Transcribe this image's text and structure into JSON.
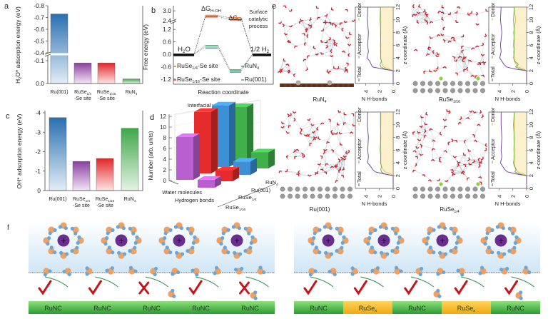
{
  "panel_letters": {
    "a": "a",
    "b": "b",
    "c": "c",
    "d": "d",
    "e": "e",
    "f": "f"
  },
  "chart_data": [
    {
      "id": "a",
      "type": "bar",
      "ylabel": [
        {
          "t": "H"
        },
        {
          "s": "2"
        },
        {
          "t": "O* adsorption energy (eV)"
        }
      ],
      "categories": [
        [
          {
            "t": "Ru(001)"
          }
        ],
        [
          {
            "t": "RuSe"
          },
          {
            "s": "1/4"
          }
        ],
        [
          {
            "t": "RuSe"
          },
          {
            "s": "1/16"
          }
        ],
        [
          {
            "t": "RuN"
          },
          {
            "s": "4"
          }
        ]
      ],
      "category_sublabels": [
        "",
        "-Se site",
        "-Se site",
        ""
      ],
      "values": [
        -0.73,
        -0.09,
        -0.09,
        -0.02
      ],
      "yticks": [
        -0.8,
        -0.7,
        -0.6,
        -0.5,
        -0.4,
        -0.1,
        0.0
      ],
      "ytick_labels": [
        "-0.8",
        "-0.7",
        "-0.6",
        "-0.5",
        "-0.4",
        "-0.1",
        "0.0"
      ],
      "axis_break": [
        -0.4,
        -0.12
      ],
      "ylim": [
        0,
        -0.8
      ],
      "colors": [
        "#2a6fb0",
        "#8b3f9e",
        "#e3262b",
        "#3fa64a"
      ]
    },
    {
      "id": "b",
      "type": "line",
      "ylabel": "Free energy (eV)",
      "xlabel": "Reaction coordinate",
      "yticks": [
        3.0,
        2.4,
        1.2,
        0.6,
        0.0,
        -0.6,
        -1.2
      ],
      "ytick_labels": [
        "3.0",
        "2.4",
        "1.2",
        "0.6",
        "0.0",
        "-0.6",
        "-1.2"
      ],
      "axis_break": [
        1.2,
        2.4
      ],
      "states": [
        [
          {
            "t": "H"
          },
          {
            "s": "2"
          },
          {
            "t": "O"
          }
        ],
        [
          {
            "t": "ΔG"
          },
          {
            "s": "H-OH"
          }
        ],
        [
          {
            "t": "ΔG"
          },
          {
            "s": "H*"
          }
        ],
        [
          {
            "t": "1/2 H"
          },
          {
            "s": "2"
          }
        ]
      ],
      "annotation": [
        "Surface",
        "catalytic",
        "process"
      ],
      "series": [
        {
          "name": [
            {
              "t": "RuSe"
            },
            {
              "s": "1/4"
            },
            {
              "t": "-Se site"
            }
          ],
          "values": [
            0,
            2.72,
            2.58,
            0
          ],
          "color": "#ee8a3c"
        },
        {
          "name": [
            {
              "t": "RuSe"
            },
            {
              "s": "1/16"
            },
            {
              "t": "-Se site"
            }
          ],
          "values": [
            0,
            2.66,
            2.48,
            0
          ],
          "color": "#d8402f"
        },
        {
          "name": [
            {
              "t": "RuN"
            },
            {
              "s": "4"
            }
          ],
          "values": [
            0,
            0.45,
            -0.72,
            0
          ],
          "color": "#46a866"
        },
        {
          "name": [
            {
              "t": "Ru(001)"
            }
          ],
          "values": [
            0,
            0.36,
            -0.8,
            0
          ],
          "color": "#5b9ea8"
        }
      ]
    },
    {
      "id": "c",
      "type": "bar",
      "ylabel": [
        {
          "t": "OH* adsorption energy (eV)"
        }
      ],
      "categories": [
        [
          {
            "t": "Ru(001)"
          }
        ],
        [
          {
            "t": "RuSe"
          },
          {
            "s": "1/4"
          }
        ],
        [
          {
            "t": "RuSe"
          },
          {
            "s": "1/16"
          }
        ],
        [
          {
            "t": "RuN"
          },
          {
            "s": "4"
          }
        ]
      ],
      "category_sublabels": [
        "",
        "-Se site",
        "-Se site",
        ""
      ],
      "values": [
        -3.75,
        -1.5,
        -1.65,
        -3.2
      ],
      "yticks": [
        -4,
        -3,
        -2,
        -1,
        0
      ],
      "ytick_labels": [
        "-4",
        "-3",
        "-2",
        "-1",
        "0"
      ],
      "ylim": [
        0,
        -4
      ],
      "colors": [
        "#2a6fb0",
        "#8b3f9e",
        "#e3262b",
        "#3fa64a"
      ]
    },
    {
      "id": "d",
      "type": "bar",
      "title": "Interfacial water structure",
      "ylabel": "Number (arb. units)",
      "categories": [
        "Water molecules",
        "Hydrogen bonds"
      ],
      "yticks": [
        0,
        2,
        4,
        6,
        8,
        10,
        12
      ],
      "ytick_labels": [
        "0",
        "2",
        "4",
        "6",
        "8",
        "10",
        "12"
      ],
      "ylim": [
        0,
        12
      ],
      "series": [
        {
          "name": [
            {
              "t": "RuSe"
            },
            {
              "s": "1/16"
            }
          ],
          "values": [
            8.0,
            1.5
          ],
          "color": "#b95fd0"
        },
        {
          "name": [
            {
              "t": "RuSe"
            },
            {
              "s": "1/4"
            }
          ],
          "values": [
            11.5,
            2.0
          ],
          "color": "#e52b2b"
        },
        {
          "name": [
            {
              "t": "Ru(001)"
            }
          ],
          "values": [
            11.5,
            2.5
          ],
          "color": "#3d8fd6"
        },
        {
          "name": [
            {
              "t": "RuN"
            },
            {
              "s": "4"
            }
          ],
          "values": [
            10.0,
            3.0
          ],
          "color": "#3fb04a"
        }
      ]
    },
    {
      "id": "e",
      "type": "line",
      "xlabel": "N H-bonds",
      "ylabel": "z-coordinate (Å)",
      "xticks": [
        "4",
        "2",
        "0"
      ],
      "yticks": [
        "0",
        "2",
        "4",
        "6",
        "8",
        "10",
        "12"
      ],
      "xlim": [
        5.5,
        0
      ],
      "ylim": [
        0,
        12
      ],
      "legend": [
        "Total",
        "Acceptor",
        "Donor"
      ],
      "z": [
        0,
        2.0,
        2.3,
        2.6,
        3.0,
        3.5,
        4.0,
        5.0,
        6.0,
        8.0,
        10.0,
        12.0
      ],
      "panels": [
        {
          "material": [
            {
              "t": "RuN"
            },
            {
              "s": "4"
            }
          ],
          "total": [
            0,
            0,
            1.6,
            3.0,
            3.2,
            3.4,
            3.8,
            3.6,
            3.7,
            3.6,
            3.75,
            3.7
          ],
          "acceptor": [
            0,
            0,
            1.2,
            1.8,
            1.9,
            1.7,
            1.85,
            1.8,
            1.85,
            1.8,
            1.9,
            1.85
          ],
          "donor": [
            0,
            0,
            0.6,
            1.4,
            1.6,
            1.7,
            1.8,
            1.85,
            1.8,
            1.85,
            1.8,
            1.85
          ]
        },
        {
          "material": [
            {
              "t": "RuSe"
            },
            {
              "s": "1/16"
            }
          ],
          "total": [
            0,
            0,
            1.8,
            2.9,
            3.3,
            3.6,
            3.9,
            3.7,
            3.8,
            3.6,
            3.8,
            3.7
          ],
          "acceptor": [
            0,
            0,
            1.0,
            1.6,
            1.2,
            1.7,
            1.9,
            1.8,
            1.9,
            1.8,
            1.9,
            1.8
          ],
          "donor": [
            0,
            0,
            0.5,
            1.3,
            1.5,
            1.8,
            1.8,
            1.9,
            1.7,
            1.9,
            1.6,
            1.85
          ]
        },
        {
          "material": [
            {
              "t": "Ru(001)"
            }
          ],
          "total": [
            0,
            0,
            1.4,
            2.6,
            3.0,
            3.3,
            3.7,
            3.6,
            3.7,
            3.6,
            3.75,
            3.7
          ],
          "acceptor": [
            0,
            0,
            1.3,
            1.7,
            1.8,
            1.7,
            1.85,
            1.8,
            1.9,
            1.8,
            1.85,
            1.85
          ],
          "donor": [
            0,
            0,
            0.4,
            1.2,
            1.5,
            1.7,
            1.8,
            1.8,
            1.8,
            1.85,
            1.8,
            1.8
          ]
        },
        {
          "material": [
            {
              "t": "RuSe"
            },
            {
              "s": "1/4"
            }
          ],
          "total": [
            0,
            0,
            1.6,
            2.8,
            3.2,
            3.5,
            3.8,
            3.6,
            3.7,
            3.6,
            3.7,
            3.7
          ],
          "acceptor": [
            0,
            0,
            1.1,
            1.7,
            1.5,
            1.8,
            1.9,
            1.8,
            1.85,
            1.8,
            1.9,
            1.8
          ],
          "donor": [
            0,
            0,
            0.5,
            1.3,
            1.6,
            1.7,
            1.8,
            1.85,
            1.8,
            1.85,
            1.8,
            1.8
          ]
        }
      ]
    }
  ],
  "panel_f": {
    "left_substrate": [
      [
        {
          "t": "RuNC"
        }
      ],
      [
        {
          "t": "RuNC"
        }
      ],
      [
        {
          "t": "RuNC"
        }
      ],
      [
        {
          "t": "RuNC"
        }
      ],
      [
        {
          "t": "RuNC"
        }
      ]
    ],
    "right_substrate": [
      [
        {
          "t": "RuNC"
        }
      ],
      [
        {
          "t": "RuSe"
        },
        {
          "s": "x"
        }
      ],
      [
        {
          "t": "RuNC"
        }
      ],
      [
        {
          "t": "RuSe"
        },
        {
          "s": "x"
        }
      ],
      [
        {
          "t": "RuNC"
        }
      ]
    ],
    "cation_symbol": "+",
    "left_marks": [
      "check",
      "check",
      "cross",
      "check",
      "cross"
    ],
    "right_marks": [
      "check",
      "check",
      "check",
      "check",
      "check"
    ],
    "colors": {
      "runc": "#3fae3c",
      "rusex": "#f3b51c",
      "cation": "#6b2d8f",
      "oxygen": "#f0a060",
      "hydrogen": "#6aa6d8",
      "check": "#c4161c",
      "arrow": "#2e8b4e"
    }
  }
}
